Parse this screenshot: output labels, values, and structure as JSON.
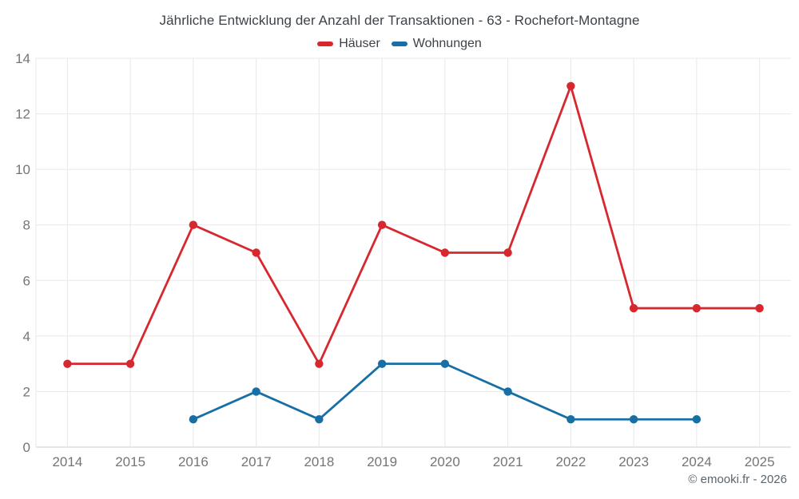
{
  "title": "Jährliche Entwicklung der Anzahl der Transaktionen - 63 - Rochefort-Montagne",
  "footer": "© emooki.fr - 2026",
  "colors": {
    "haeuser": "#d7282f",
    "wohnungen": "#176fa5",
    "grid": "#e8e8e8",
    "axis_line": "#cccccc",
    "tick_text": "#757575",
    "title_text": "#3d4248",
    "background": "#ffffff"
  },
  "chart_data": {
    "type": "line",
    "title": "Jährliche Entwicklung der Anzahl der Transaktionen - 63 - Rochefort-Montagne",
    "x": [
      2014,
      2015,
      2016,
      2017,
      2018,
      2019,
      2020,
      2021,
      2022,
      2023,
      2024,
      2025
    ],
    "series": [
      {
        "name": "Häuser",
        "color": "#d7282f",
        "values": [
          3,
          3,
          8,
          7,
          3,
          8,
          7,
          7,
          13,
          5,
          5,
          5
        ]
      },
      {
        "name": "Wohnungen",
        "color": "#176fa5",
        "values": [
          null,
          null,
          1,
          2,
          1,
          3,
          3,
          2,
          1,
          1,
          1,
          null
        ]
      }
    ],
    "xlabel": "",
    "ylabel": "",
    "ylim": [
      0,
      14
    ],
    "yticks": [
      0,
      2,
      4,
      6,
      8,
      10,
      12,
      14
    ],
    "grid": true,
    "legend_position": "top"
  }
}
